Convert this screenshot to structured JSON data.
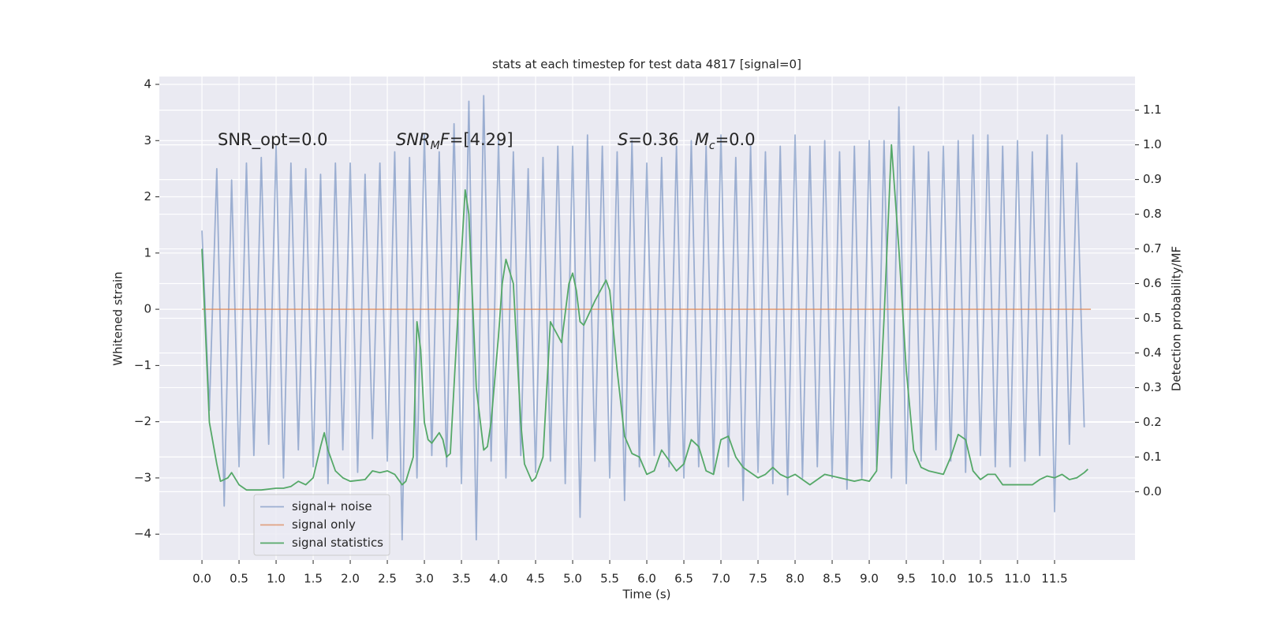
{
  "chart_data": {
    "type": "line",
    "title": "stats at each timestep for test data 4817 [signal=0]",
    "xlabel": "Time (s)",
    "ylabel": "Whitened strain",
    "y2label": "Detection probability/MF",
    "xlim": [
      -0.575,
      12.585
    ],
    "ylim": [
      -4.46,
      4.14
    ],
    "y2lim": [
      -0.197,
      1.197
    ],
    "xticks": [
      {
        "value": 0,
        "label": "0.0"
      },
      0.5,
      {
        "value": 1,
        "label": "1.0"
      },
      1.5,
      {
        "value": 2,
        "label": "2.0"
      },
      2.5,
      {
        "value": 3,
        "label": "3.0"
      },
      3.5,
      {
        "value": 4,
        "label": "4.0"
      },
      4.5,
      {
        "value": 5,
        "label": "5.0"
      },
      5.5,
      {
        "value": 6,
        "label": "6.0"
      },
      6.5,
      {
        "value": 7,
        "label": "7.0"
      },
      7.5,
      {
        "value": 8,
        "label": "8.0"
      },
      8.5,
      {
        "value": 9,
        "label": "9.0"
      },
      9.5,
      {
        "value": 10,
        "label": "10.0"
      },
      10.5,
      {
        "value": 11,
        "label": "11.0"
      },
      11.5
    ],
    "yticks": [
      {
        "value": -4,
        "label": "−4"
      },
      {
        "value": -3,
        "label": "−3"
      },
      {
        "value": -2,
        "label": "−2"
      },
      {
        "value": -1,
        "label": "−1"
      },
      0,
      1,
      2,
      3,
      4
    ],
    "y2ticks": [
      {
        "value": 0,
        "label": "0.0"
      },
      0.1,
      0.2,
      0.3,
      0.4,
      0.5,
      0.6,
      0.7,
      0.8,
      0.9,
      {
        "value": 1,
        "label": "1.0"
      },
      1.1
    ],
    "grid": true,
    "legend": "lower left",
    "series": [
      {
        "name": "signal+ noise",
        "color": "#4c72b0",
        "opacity": 0.5,
        "x": [
          0.0,
          0.1,
          0.2,
          0.3,
          0.4,
          0.5,
          0.6,
          0.7,
          0.8,
          0.9,
          1.0,
          1.1,
          1.2,
          1.3,
          1.4,
          1.5,
          1.6,
          1.7,
          1.8,
          1.9,
          2.0,
          2.1,
          2.2,
          2.3,
          2.4,
          2.5,
          2.6,
          2.7,
          2.8,
          2.9,
          3.0,
          3.1,
          3.2,
          3.3,
          3.4,
          3.5,
          3.6,
          3.7,
          3.8,
          3.9,
          4.0,
          4.1,
          4.2,
          4.3,
          4.4,
          4.5,
          4.6,
          4.7,
          4.8,
          4.9,
          5.0,
          5.1,
          5.2,
          5.3,
          5.4,
          5.5,
          5.6,
          5.7,
          5.8,
          5.9,
          6.0,
          6.1,
          6.2,
          6.3,
          6.4,
          6.5,
          6.6,
          6.7,
          6.8,
          6.9,
          7.0,
          7.1,
          7.2,
          7.3,
          7.4,
          7.5,
          7.6,
          7.7,
          7.8,
          7.9,
          8.0,
          8.1,
          8.2,
          8.3,
          8.4,
          8.5,
          8.6,
          8.7,
          8.8,
          8.9,
          9.0,
          9.1,
          9.2,
          9.3,
          9.4,
          9.5,
          9.6,
          9.7,
          9.8,
          9.9,
          10.0,
          10.1,
          10.2,
          10.3,
          10.4,
          10.5,
          10.6,
          10.7,
          10.8,
          10.9,
          11.0,
          11.1,
          11.2,
          11.3,
          11.4,
          11.5,
          11.6,
          11.7,
          11.8,
          11.9
        ],
        "values": [
          1.4,
          -1.8,
          2.5,
          -3.5,
          2.3,
          -2.8,
          2.6,
          -2.6,
          2.7,
          -2.4,
          2.9,
          -3.0,
          2.6,
          -2.5,
          2.5,
          -2.8,
          2.4,
          -3.1,
          2.6,
          -2.5,
          2.6,
          -2.9,
          2.4,
          -2.3,
          2.6,
          -2.7,
          2.8,
          -4.1,
          2.7,
          -3.0,
          3.1,
          -2.6,
          2.8,
          -2.8,
          3.3,
          -3.1,
          3.7,
          -4.1,
          3.8,
          -2.7,
          3.0,
          -3.0,
          2.8,
          -2.6,
          2.5,
          -2.9,
          2.7,
          -2.7,
          2.9,
          -3.1,
          2.9,
          -3.7,
          3.1,
          -2.7,
          2.9,
          -3.0,
          2.8,
          -3.4,
          3.0,
          -2.8,
          2.6,
          -2.6,
          2.7,
          -2.8,
          2.9,
          -3.0,
          3.0,
          -2.8,
          2.9,
          -2.9,
          3.1,
          -2.8,
          2.7,
          -3.4,
          2.9,
          -2.9,
          2.8,
          -3.1,
          2.9,
          -3.3,
          3.1,
          -3.0,
          2.9,
          -2.8,
          3.0,
          -3.0,
          2.8,
          -3.2,
          2.9,
          -3.0,
          3.0,
          -2.8,
          3.0,
          -3.0,
          3.6,
          -3.1,
          2.9,
          -2.7,
          2.8,
          -2.5,
          2.9,
          -2.7,
          3.0,
          -2.9,
          3.1,
          -2.6,
          3.1,
          -2.8,
          2.9,
          -2.8,
          3.0,
          -2.7,
          2.8,
          -2.6,
          3.1,
          -3.6,
          3.1,
          -2.4,
          2.6,
          -2.1
        ]
      },
      {
        "name": "signal only",
        "color": "#dd8452",
        "opacity": 0.7,
        "x": [
          0.0,
          11.99
        ],
        "values": [
          0,
          0
        ]
      },
      {
        "name": "signal statistics",
        "color": "#55a868",
        "opacity": 1,
        "axis": "y2",
        "x": [
          0.0,
          0.1,
          0.2,
          0.25,
          0.35,
          0.4,
          0.5,
          0.6,
          0.8,
          1.0,
          1.1,
          1.2,
          1.3,
          1.4,
          1.5,
          1.6,
          1.65,
          1.7,
          1.8,
          1.9,
          2.0,
          2.2,
          2.3,
          2.4,
          2.5,
          2.6,
          2.7,
          2.75,
          2.85,
          2.9,
          2.95,
          3.0,
          3.05,
          3.1,
          3.2,
          3.25,
          3.3,
          3.35,
          3.45,
          3.55,
          3.6,
          3.7,
          3.8,
          3.85,
          3.9,
          4.0,
          4.05,
          4.1,
          4.2,
          4.3,
          4.35,
          4.45,
          4.5,
          4.6,
          4.7,
          4.8,
          4.85,
          4.95,
          5.0,
          5.05,
          5.1,
          5.15,
          5.3,
          5.45,
          5.5,
          5.6,
          5.7,
          5.8,
          5.9,
          6.0,
          6.1,
          6.2,
          6.3,
          6.4,
          6.5,
          6.6,
          6.7,
          6.8,
          6.9,
          7.0,
          7.1,
          7.2,
          7.3,
          7.5,
          7.6,
          7.7,
          7.8,
          7.9,
          8.0,
          8.2,
          8.4,
          8.6,
          8.8,
          8.9,
          9.0,
          9.1,
          9.2,
          9.3,
          9.4,
          9.5,
          9.6,
          9.7,
          9.8,
          10.0,
          10.1,
          10.2,
          10.3,
          10.4,
          10.5,
          10.6,
          10.7,
          10.8,
          11.0,
          11.2,
          11.3,
          11.4,
          11.5,
          11.6,
          11.7,
          11.8,
          11.9,
          11.95
        ],
        "values": [
          0.7,
          0.2,
          0.08,
          0.03,
          0.04,
          0.055,
          0.02,
          0.005,
          0.005,
          0.01,
          0.01,
          0.015,
          0.03,
          0.02,
          0.04,
          0.13,
          0.17,
          0.12,
          0.06,
          0.04,
          0.03,
          0.035,
          0.06,
          0.055,
          0.06,
          0.05,
          0.02,
          0.03,
          0.1,
          0.49,
          0.41,
          0.2,
          0.15,
          0.14,
          0.17,
          0.15,
          0.1,
          0.11,
          0.5,
          0.87,
          0.8,
          0.3,
          0.12,
          0.13,
          0.2,
          0.45,
          0.6,
          0.67,
          0.6,
          0.2,
          0.08,
          0.03,
          0.04,
          0.1,
          0.49,
          0.45,
          0.43,
          0.6,
          0.63,
          0.58,
          0.49,
          0.48,
          0.55,
          0.61,
          0.58,
          0.35,
          0.16,
          0.11,
          0.1,
          0.05,
          0.06,
          0.12,
          0.09,
          0.06,
          0.08,
          0.15,
          0.13,
          0.06,
          0.05,
          0.15,
          0.16,
          0.1,
          0.07,
          0.04,
          0.05,
          0.07,
          0.05,
          0.04,
          0.05,
          0.02,
          0.05,
          0.04,
          0.03,
          0.035,
          0.03,
          0.06,
          0.5,
          1.0,
          0.7,
          0.35,
          0.12,
          0.07,
          0.06,
          0.05,
          0.1,
          0.165,
          0.15,
          0.06,
          0.035,
          0.05,
          0.05,
          0.02,
          0.02,
          0.02,
          0.035,
          0.045,
          0.04,
          0.05,
          0.035,
          0.04,
          0.055,
          0.065
        ]
      }
    ],
    "annotations": [
      [
        {
          "text": "SNR_opt=0.0"
        }
      ],
      [
        {
          "text": "SNR",
          "style": "italic"
        },
        {
          "text": "M",
          "style": "sub"
        },
        {
          "text": "F",
          "style": "italic"
        },
        {
          "text": "=[4.29]"
        }
      ],
      [
        {
          "text": "S",
          "style": "italic"
        },
        {
          "text": "=0.36   "
        },
        {
          "text": "M",
          "style": "italic"
        },
        {
          "text": "c",
          "style": "sub"
        },
        {
          "text": "=0.0"
        }
      ]
    ]
  }
}
